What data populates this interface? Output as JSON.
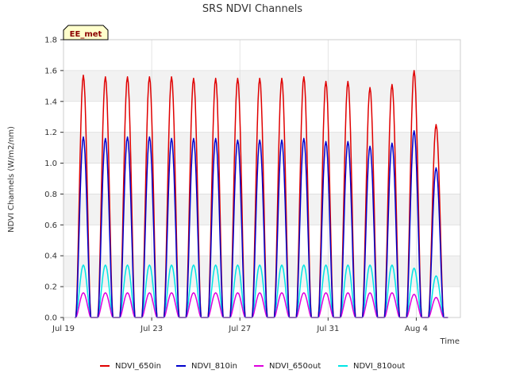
{
  "chart_data": {
    "type": "line",
    "title": "SRS NDVI Channels",
    "xlabel": "Time",
    "ylabel": "NDVI Channels (W/m2/nm)",
    "ylim": [
      0,
      1.8
    ],
    "xlim_days": [
      0,
      18
    ],
    "y_ticks": [
      "0.0",
      "0.2",
      "0.4",
      "0.6",
      "0.8",
      "1.0",
      "1.2",
      "1.4",
      "1.6",
      "1.8"
    ],
    "x_ticks": [
      {
        "day": 0,
        "label": "Jul 19"
      },
      {
        "day": 4,
        "label": "Jul 23"
      },
      {
        "day": 8,
        "label": "Jul 27"
      },
      {
        "day": 12,
        "label": "Jul 31"
      },
      {
        "day": 16,
        "label": "Aug 4"
      }
    ],
    "grid": true,
    "legend_position": "bottom",
    "badge": "EE_met",
    "badge_colors": {
      "fill": "#ffffcc",
      "stroke": "#000000"
    },
    "series": [
      {
        "name": "NDVI_650in",
        "color": "#e00000",
        "daily_peaks": [
          1.57,
          1.56,
          1.56,
          1.56,
          1.56,
          1.55,
          1.55,
          1.55,
          1.55,
          1.55,
          1.56,
          1.53,
          1.53,
          1.49,
          1.51,
          1.6,
          1.25
        ]
      },
      {
        "name": "NDVI_810in",
        "color": "#0000cc",
        "daily_peaks": [
          1.17,
          1.16,
          1.17,
          1.17,
          1.16,
          1.16,
          1.16,
          1.15,
          1.15,
          1.15,
          1.16,
          1.14,
          1.14,
          1.11,
          1.13,
          1.21,
          0.97
        ]
      },
      {
        "name": "NDVI_650out",
        "color": "#dd00dd",
        "daily_peaks": [
          0.16,
          0.16,
          0.16,
          0.16,
          0.16,
          0.16,
          0.16,
          0.16,
          0.16,
          0.16,
          0.16,
          0.16,
          0.16,
          0.16,
          0.16,
          0.15,
          0.13
        ]
      },
      {
        "name": "NDVI_810out",
        "color": "#00e5e5",
        "daily_peaks": [
          0.34,
          0.34,
          0.34,
          0.34,
          0.34,
          0.34,
          0.34,
          0.34,
          0.34,
          0.34,
          0.34,
          0.34,
          0.34,
          0.34,
          0.34,
          0.32,
          0.27
        ]
      }
    ],
    "daily_peak_days": [
      0.9,
      1.9,
      2.9,
      3.9,
      4.9,
      5.9,
      6.9,
      7.9,
      8.9,
      9.9,
      10.9,
      11.9,
      12.9,
      13.9,
      14.9,
      15.9,
      16.9
    ]
  }
}
